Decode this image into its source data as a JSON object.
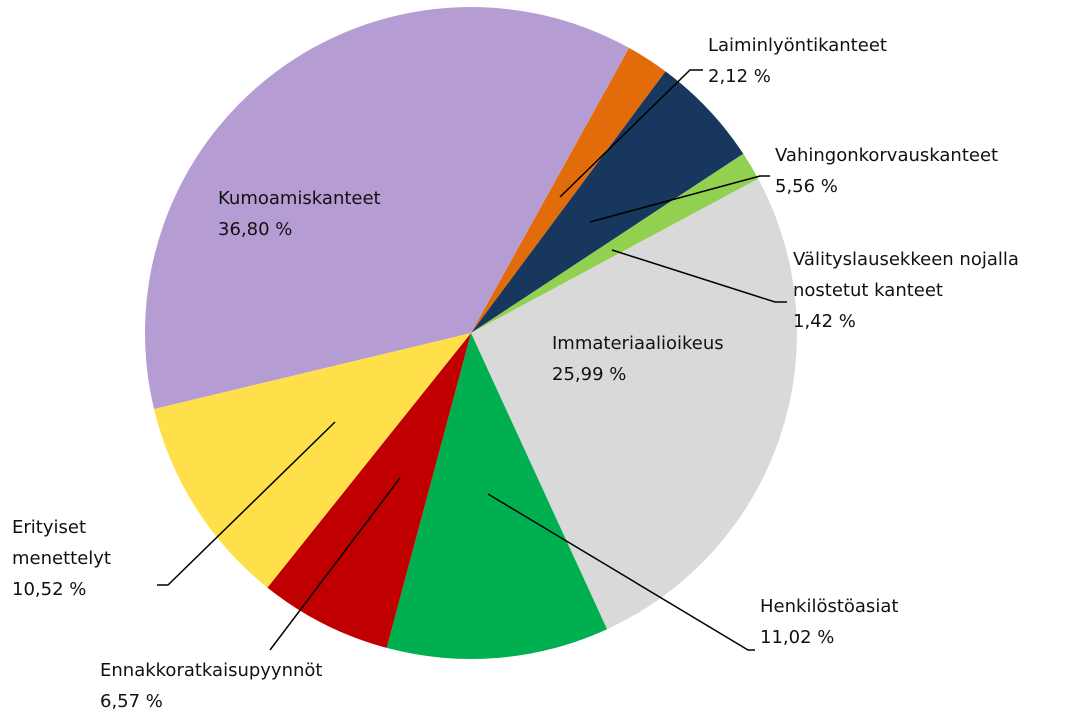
{
  "chart_data": {
    "type": "pie",
    "categories": [
      "Kumoamiskanteet",
      "Laiminlyöntikanteet",
      "Vahingonkorvauskanteet",
      "Välityslausekkeen nojalla nostetut kanteet",
      "Immateriaalioikeus",
      "Henkilöstöasiat",
      "Ennakkoratkaisupyynnöt",
      "Erityiset menettelyt"
    ],
    "values": [
      36.8,
      2.12,
      5.56,
      1.42,
      25.99,
      11.02,
      6.57,
      10.52
    ],
    "value_labels": [
      "36,80 %",
      "2,12 %",
      "5,56 %",
      "1,42 %",
      "25,99 %",
      "11,02 %",
      "6,57 %",
      "10,52 %"
    ],
    "colors": [
      "#b59dd4",
      "#e36c0a",
      "#17375e",
      "#92d050",
      "#d9d9d9",
      "#00b050",
      "#c00000",
      "#ffe04b"
    ]
  }
}
